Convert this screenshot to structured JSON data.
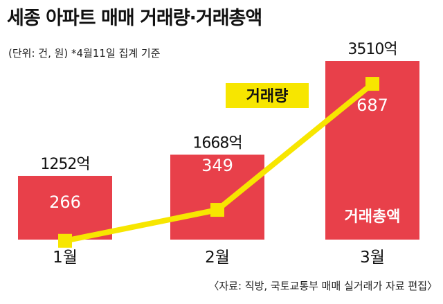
{
  "title": "세종 아파트 매매 거래량·거래총액",
  "subtitle": "(단위: 건, 원)  *4월11일 집계 기준",
  "source": "〈자료: 직방, 국토교통부 매매 실거래가 자료 편집〉",
  "colors": {
    "bar": "#e8404a",
    "line": "#f7e600",
    "marker": "#f7e600",
    "text": "#111111"
  },
  "chart_data": {
    "type": "bar",
    "categories": [
      "1월",
      "2월",
      "3월"
    ],
    "series": [
      {
        "name": "거래총액",
        "type": "bar",
        "values": [
          1252,
          1668,
          3510
        ],
        "labels": [
          "1252억",
          "1668억",
          "3510억"
        ]
      },
      {
        "name": "거래량",
        "type": "line",
        "values": [
          266,
          349,
          687
        ],
        "labels": [
          "266",
          "349",
          "687"
        ]
      }
    ]
  }
}
